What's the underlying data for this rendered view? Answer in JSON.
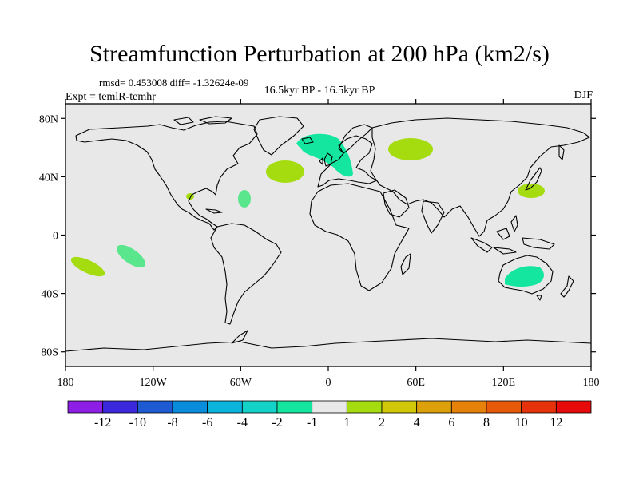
{
  "title": "Streamfunction Perturbation at 200 hPa (km2/s)",
  "stats_line": "rmsd= 0.453008 diff= -1.32624e-09",
  "experiment_line": "Expt = temlR-temhr",
  "period_line": "16.5kyr BP - 16.5kyr BP",
  "season": "DJF",
  "map": {
    "projection": "cylindrical equidistant",
    "lon_range": [
      -180,
      180
    ],
    "lat_range": [
      -90,
      90
    ],
    "ocean_color": "#e8e8e8",
    "coast_color": "#000000",
    "lat_ticks": [
      {
        "value": 80,
        "label": "80N"
      },
      {
        "value": 40,
        "label": "40N"
      },
      {
        "value": 0,
        "label": "0"
      },
      {
        "value": -40,
        "label": "40S"
      },
      {
        "value": -80,
        "label": "80S"
      }
    ],
    "lon_ticks": [
      {
        "value": -180,
        "label": "180"
      },
      {
        "value": -120,
        "label": "120W"
      },
      {
        "value": -60,
        "label": "60W"
      },
      {
        "value": 0,
        "label": "0"
      },
      {
        "value": 60,
        "label": "60E"
      },
      {
        "value": 120,
        "label": "120E"
      },
      {
        "value": 180,
        "label": "180"
      }
    ],
    "anomaly_patches": [
      {
        "lon": -165,
        "lat": -22,
        "level": "2",
        "color": "#a5dc0f"
      },
      {
        "lon": -145,
        "lat": -14,
        "level": "-2",
        "color": "#5ae68c"
      },
      {
        "lon": -97,
        "lat": 27,
        "level": "2",
        "color": "#a5dc0f"
      },
      {
        "lon": -58,
        "lat": 26,
        "level": "-2",
        "color": "#5ae68c"
      },
      {
        "lon": -30,
        "lat": 45,
        "level": "2",
        "color": "#a5dc0f"
      },
      {
        "lon": 10,
        "lat": 57,
        "level": "-2",
        "color": "#14e6a0"
      },
      {
        "lon": 58,
        "lat": 62,
        "level": "2",
        "color": "#a5dc0f"
      },
      {
        "lon": 140,
        "lat": 31,
        "level": "2",
        "color": "#a5dc0f"
      },
      {
        "lon": 136,
        "lat": -27,
        "level": "-2",
        "color": "#14e6a0"
      }
    ]
  },
  "colorbar": {
    "labels": [
      "-12",
      "-10",
      "-8",
      "-6",
      "-4",
      "-2",
      "-1",
      "1",
      "2",
      "4",
      "6",
      "8",
      "10",
      "12"
    ],
    "colors": [
      "#8c1ee6",
      "#3c28dc",
      "#1e5ad2",
      "#0a8cdc",
      "#0ab4dc",
      "#14d2c8",
      "#14e6a0",
      "#e8e8e8",
      "#a5dc0f",
      "#d2c80a",
      "#dca00a",
      "#e6820a",
      "#e65a0a",
      "#e6320a",
      "#e60a0a"
    ]
  }
}
